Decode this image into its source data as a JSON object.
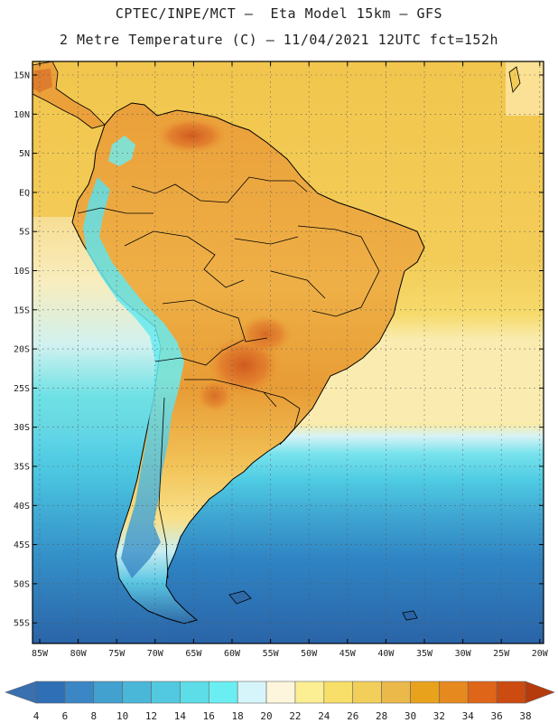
{
  "header": {
    "line1": "CPTEC/INPE/MCT –  Eta Model 15km – GFS",
    "line2": "2 Metre Temperature (C) – 11/04/2021 12UTC fct=152h"
  },
  "map": {
    "lat_ticks": [
      "15N",
      "10N",
      "5N",
      "EQ",
      "5S",
      "10S",
      "15S",
      "20S",
      "25S",
      "30S",
      "35S",
      "40S",
      "45S",
      "50S",
      "55S"
    ],
    "lon_ticks": [
      "85W",
      "80W",
      "75W",
      "70W",
      "65W",
      "60W",
      "55W",
      "50W",
      "45W",
      "40W",
      "35W",
      "30W",
      "25W",
      "20W"
    ],
    "colors": {
      "frame": "#000000",
      "grid": "#555555",
      "coast": "#000000"
    }
  },
  "legend": {
    "labels": [
      "4",
      "6",
      "8",
      "10",
      "12",
      "14",
      "16",
      "18",
      "20",
      "22",
      "24",
      "26",
      "28",
      "30",
      "32",
      "34",
      "36",
      "38"
    ],
    "colors": [
      "#3a6fb0",
      "#2e6fb5",
      "#3b86c4",
      "#42a1cf",
      "#4ab7d9",
      "#52c9e0",
      "#5ddde8",
      "#6beef2",
      "#d6f5fb",
      "#fdf6dd",
      "#fbee93",
      "#f7df6a",
      "#f1cf5a",
      "#eab94a",
      "#e8a21c",
      "#e6891f",
      "#df6618",
      "#cc4b10",
      "#b53a0c"
    ]
  }
}
